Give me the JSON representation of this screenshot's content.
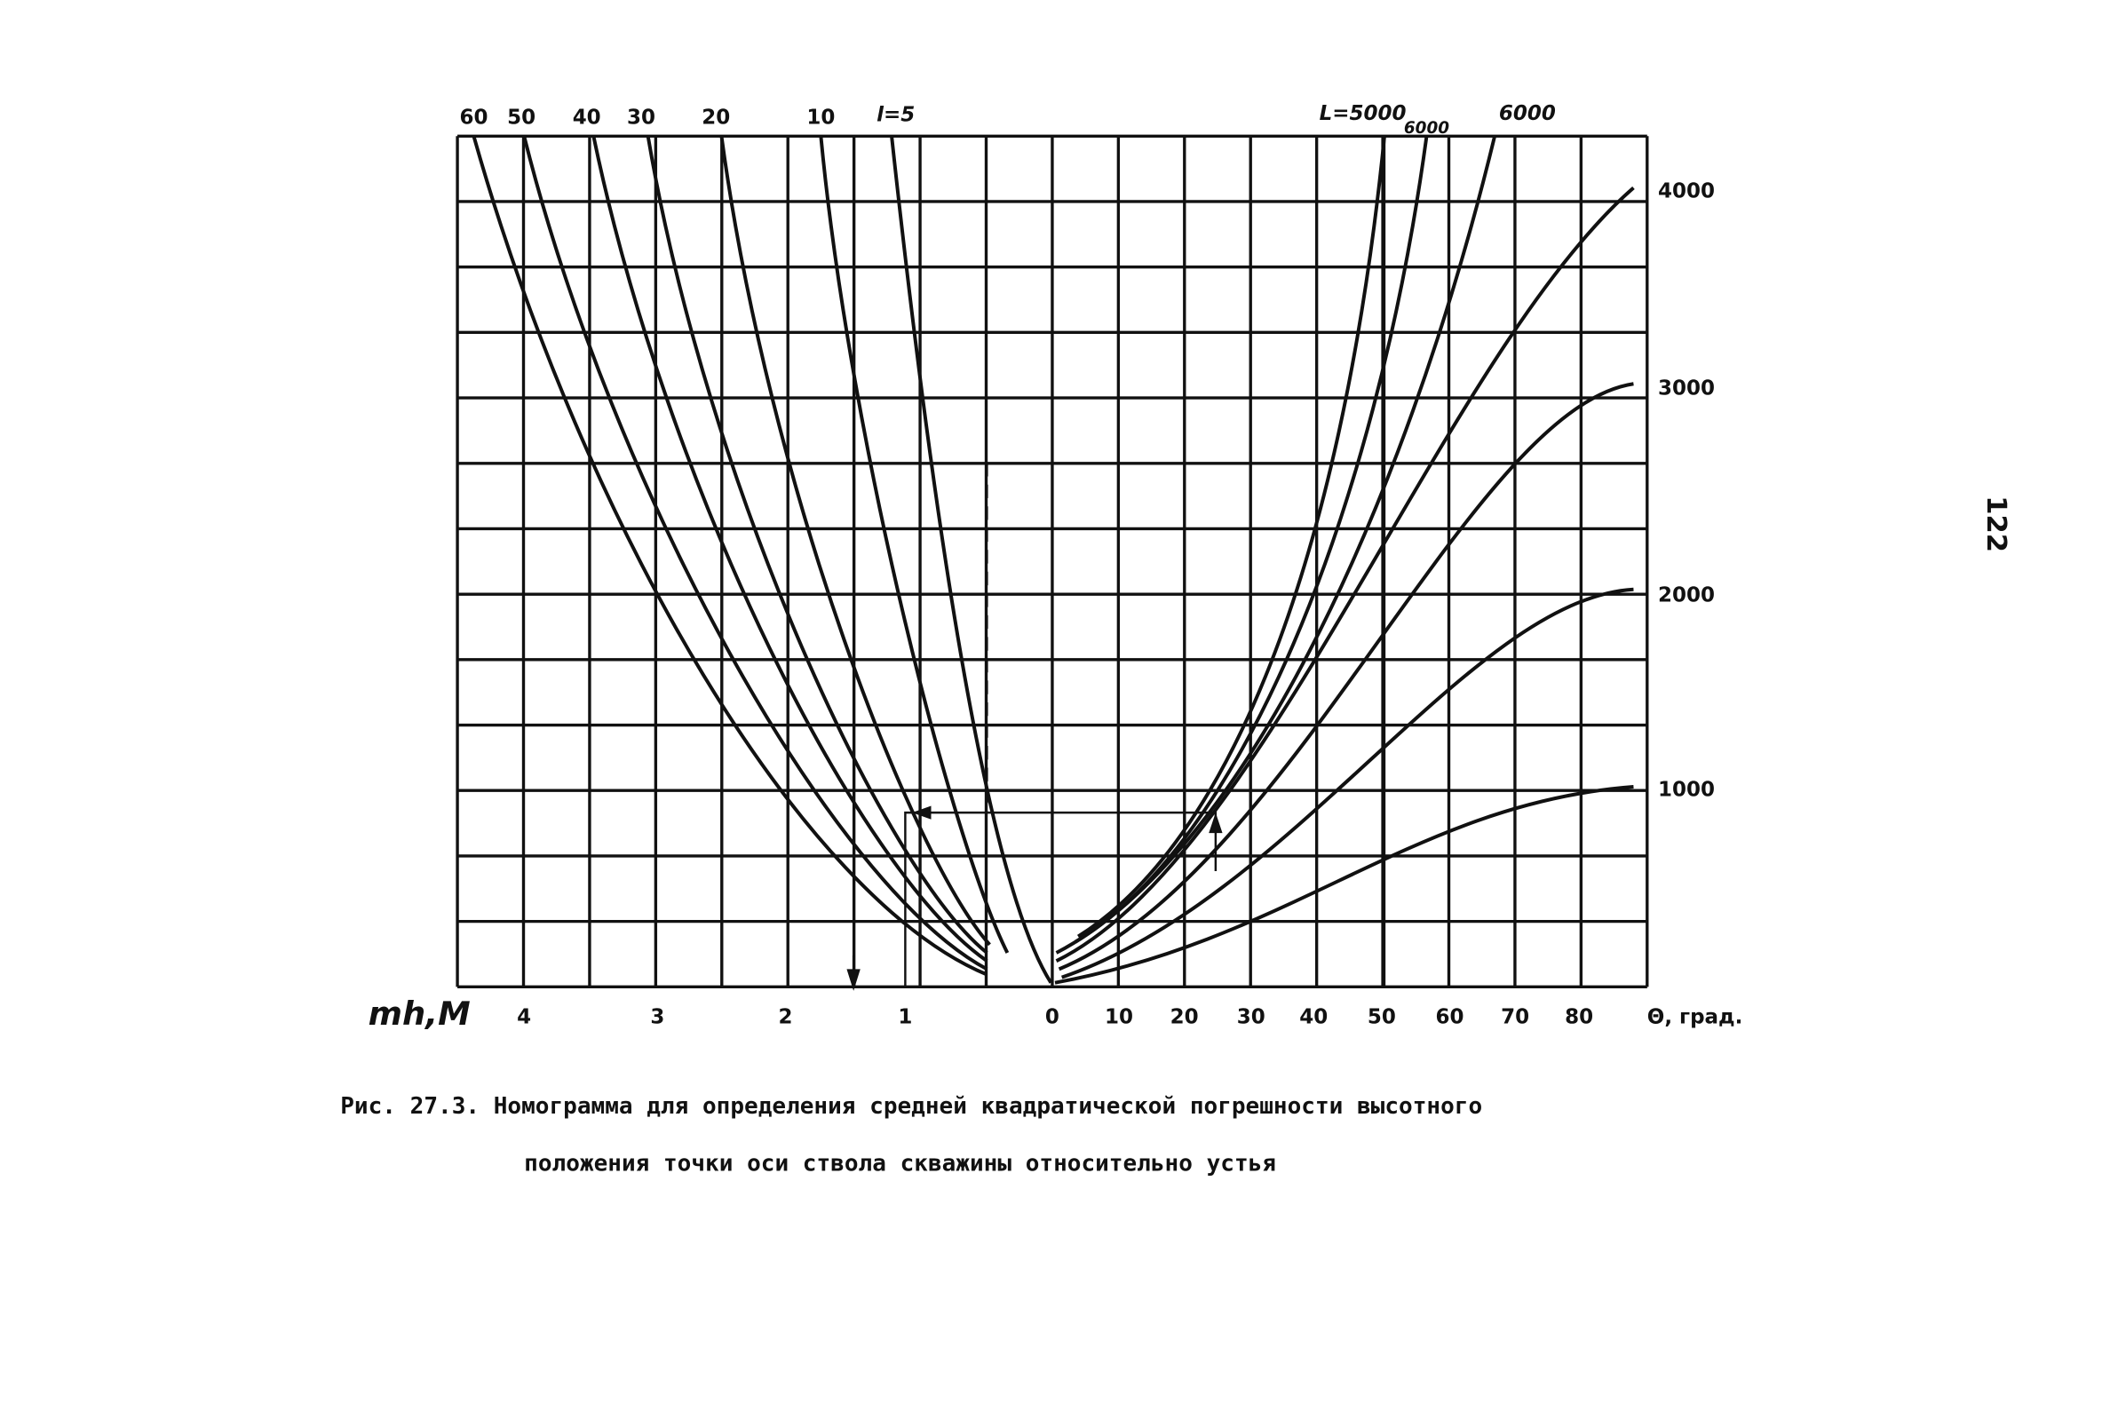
{
  "figure": {
    "top_labels": [
      "60",
      "50",
      "40",
      "30",
      "20",
      "10",
      "l=5",
      "L=5000",
      "6000",
      "6000"
    ],
    "bottom_left_axis_title": "mh,M",
    "bottom_left_labels": [
      "4",
      "3",
      "2",
      "1",
      "0"
    ],
    "bottom_right_labels": [
      "10",
      "20",
      "30",
      "40",
      "50",
      "60",
      "70",
      "80"
    ],
    "bottom_right_axis_title": "Θ, град.",
    "right_labels": [
      "4000",
      "3000",
      "2000",
      "1000"
    ],
    "caption": [
      "Рис. 27.3. Номограмма для определения средней квадратической погрешности высотного",
      "положения точки оси ствола скважины относительно устья"
    ]
  },
  "page_number": "122"
}
